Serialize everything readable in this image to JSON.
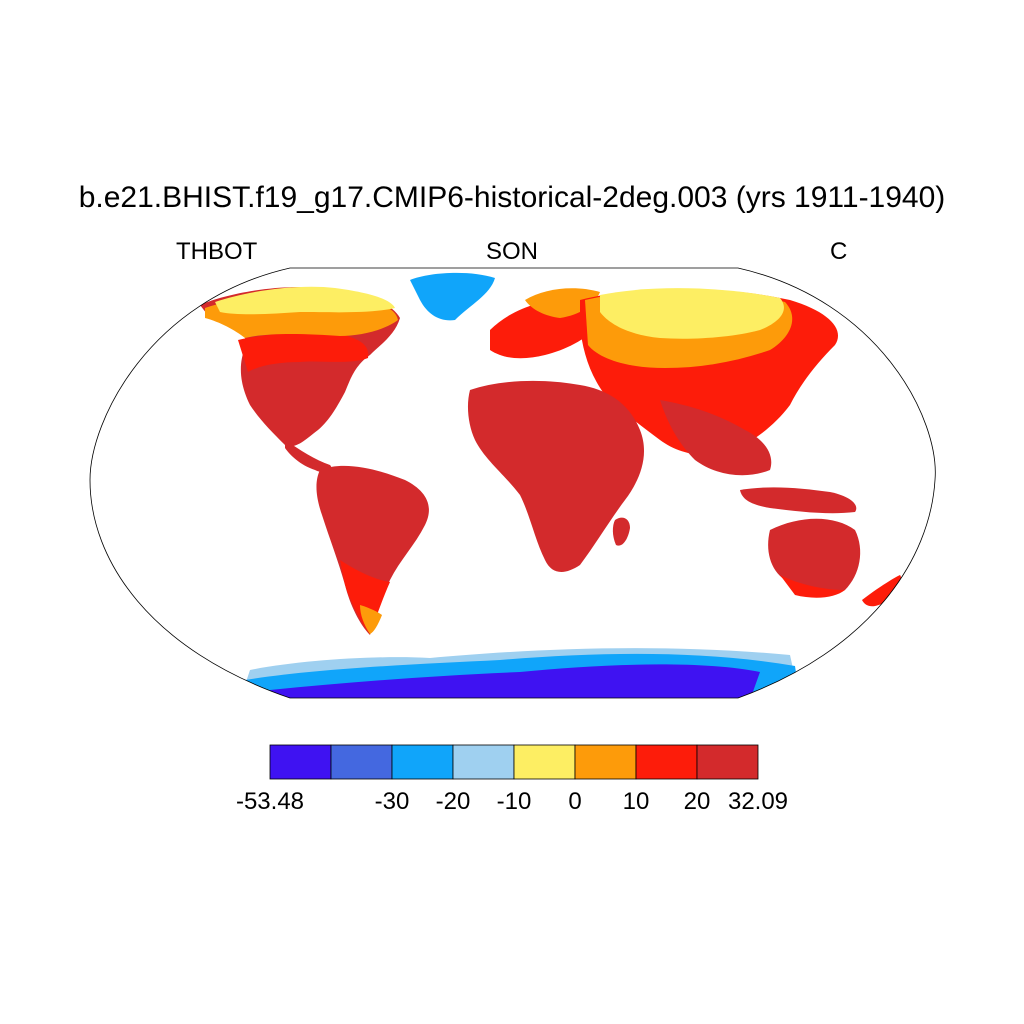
{
  "header": {
    "title": "b.e21.BHIST.f19_g17.CMIP6-historical-2deg.003 (yrs 1911-1940)",
    "left_label": "THBOT",
    "center_label": "SON",
    "right_label": "C"
  },
  "colorbar": {
    "colors": [
      "#3f12f2",
      "#4468e0",
      "#10a5fa",
      "#9fd0f0",
      "#fdee63",
      "#fd9b0a",
      "#fd1c0a",
      "#d32a2c"
    ],
    "labels": [
      "-53.48",
      "",
      "-30",
      "-20",
      "-10",
      "0",
      "10",
      "20",
      "32.09"
    ]
  },
  "map": {
    "projection": "Robinson",
    "land_color": "#d32a2c",
    "ocean_color": "#ffffff"
  }
}
